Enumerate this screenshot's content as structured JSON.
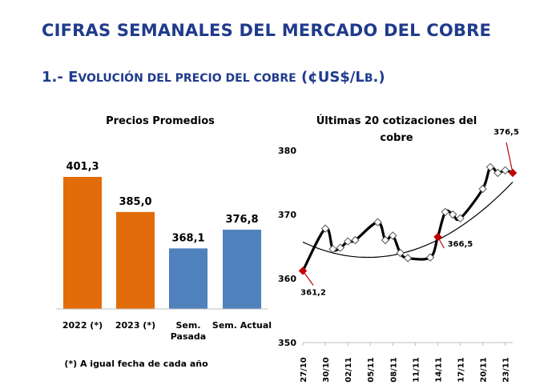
{
  "header": {
    "title": "CIFRAS SEMANALES DEL MERCADO DEL COBRE",
    "section_prefix": "1.- E",
    "section_sc1": "VOLUCIÓN DEL PRECIO DEL COBRE",
    "section_mid": " (¢US$/L",
    "section_sc2": "B",
    "section_end": ".)"
  },
  "chart_data": [
    {
      "type": "bar",
      "title": "Precios Promedios",
      "categories": [
        "2022 (*)",
        "2023 (*)",
        "Sem. Pasada",
        "Sem. Actual"
      ],
      "category_lines": [
        [
          "2022 (*)"
        ],
        [
          "2023 (*)"
        ],
        [
          "Sem.",
          "Pasada"
        ],
        [
          "Sem. Actual"
        ]
      ],
      "values": [
        401.3,
        385.0,
        368.1,
        376.8
      ],
      "value_labels": [
        "401,3",
        "385,0",
        "368,1",
        "376,8"
      ],
      "colors": [
        "#e36c0a",
        "#e36c0a",
        "#4f81bd",
        "#4f81bd"
      ],
      "ylim": [
        340,
        410
      ],
      "footnote": "(*) A igual fecha de cada año"
    },
    {
      "type": "line",
      "title": "Últimas 20 cotizaciones del cobre",
      "title_lines": [
        "Últimas 20 cotizaciones del",
        "cobre"
      ],
      "x": [
        "27/10",
        "30/10",
        "31/10",
        "01/11",
        "02/11",
        "03/11",
        "06/11",
        "07/11",
        "08/11",
        "09/11",
        "10/11",
        "13/11",
        "14/11",
        "15/11",
        "16/11",
        "17/11",
        "20/11",
        "21/11",
        "22/11",
        "23/11",
        "24/11"
      ],
      "x_ticks": [
        "27/10",
        "30/10",
        "02/11",
        "05/11",
        "08/11",
        "11/11",
        "14/11",
        "17/11",
        "20/11",
        "23/11"
      ],
      "x_tick_index": [
        0,
        3,
        6,
        9,
        12,
        15,
        18,
        21,
        24,
        27
      ],
      "x_domain": [
        0,
        28
      ],
      "x_index": [
        0,
        3,
        4,
        5,
        6,
        7,
        10,
        11,
        12,
        13,
        14,
        17,
        18,
        19,
        20,
        21,
        24,
        25,
        26,
        27,
        28
      ],
      "values": [
        361.2,
        367.8,
        364.6,
        364.8,
        365.8,
        366.0,
        368.8,
        366.0,
        366.7,
        364.0,
        363.2,
        363.3,
        366.5,
        370.4,
        370.0,
        369.4,
        374.0,
        377.4,
        376.5,
        376.9,
        376.5
      ],
      "trend_coeffs": [
        365.7,
        -0.55,
        0.0316
      ],
      "yticks": [
        350,
        360,
        370,
        380
      ],
      "ylim": [
        350,
        380
      ],
      "annotations": [
        {
          "text": "361,2",
          "index": 0
        },
        {
          "text": "366,5",
          "index": 12
        },
        {
          "text": "376,5",
          "index": 20
        }
      ],
      "line_color": "#000000",
      "marker_highlight_color": "#c00000"
    }
  ]
}
